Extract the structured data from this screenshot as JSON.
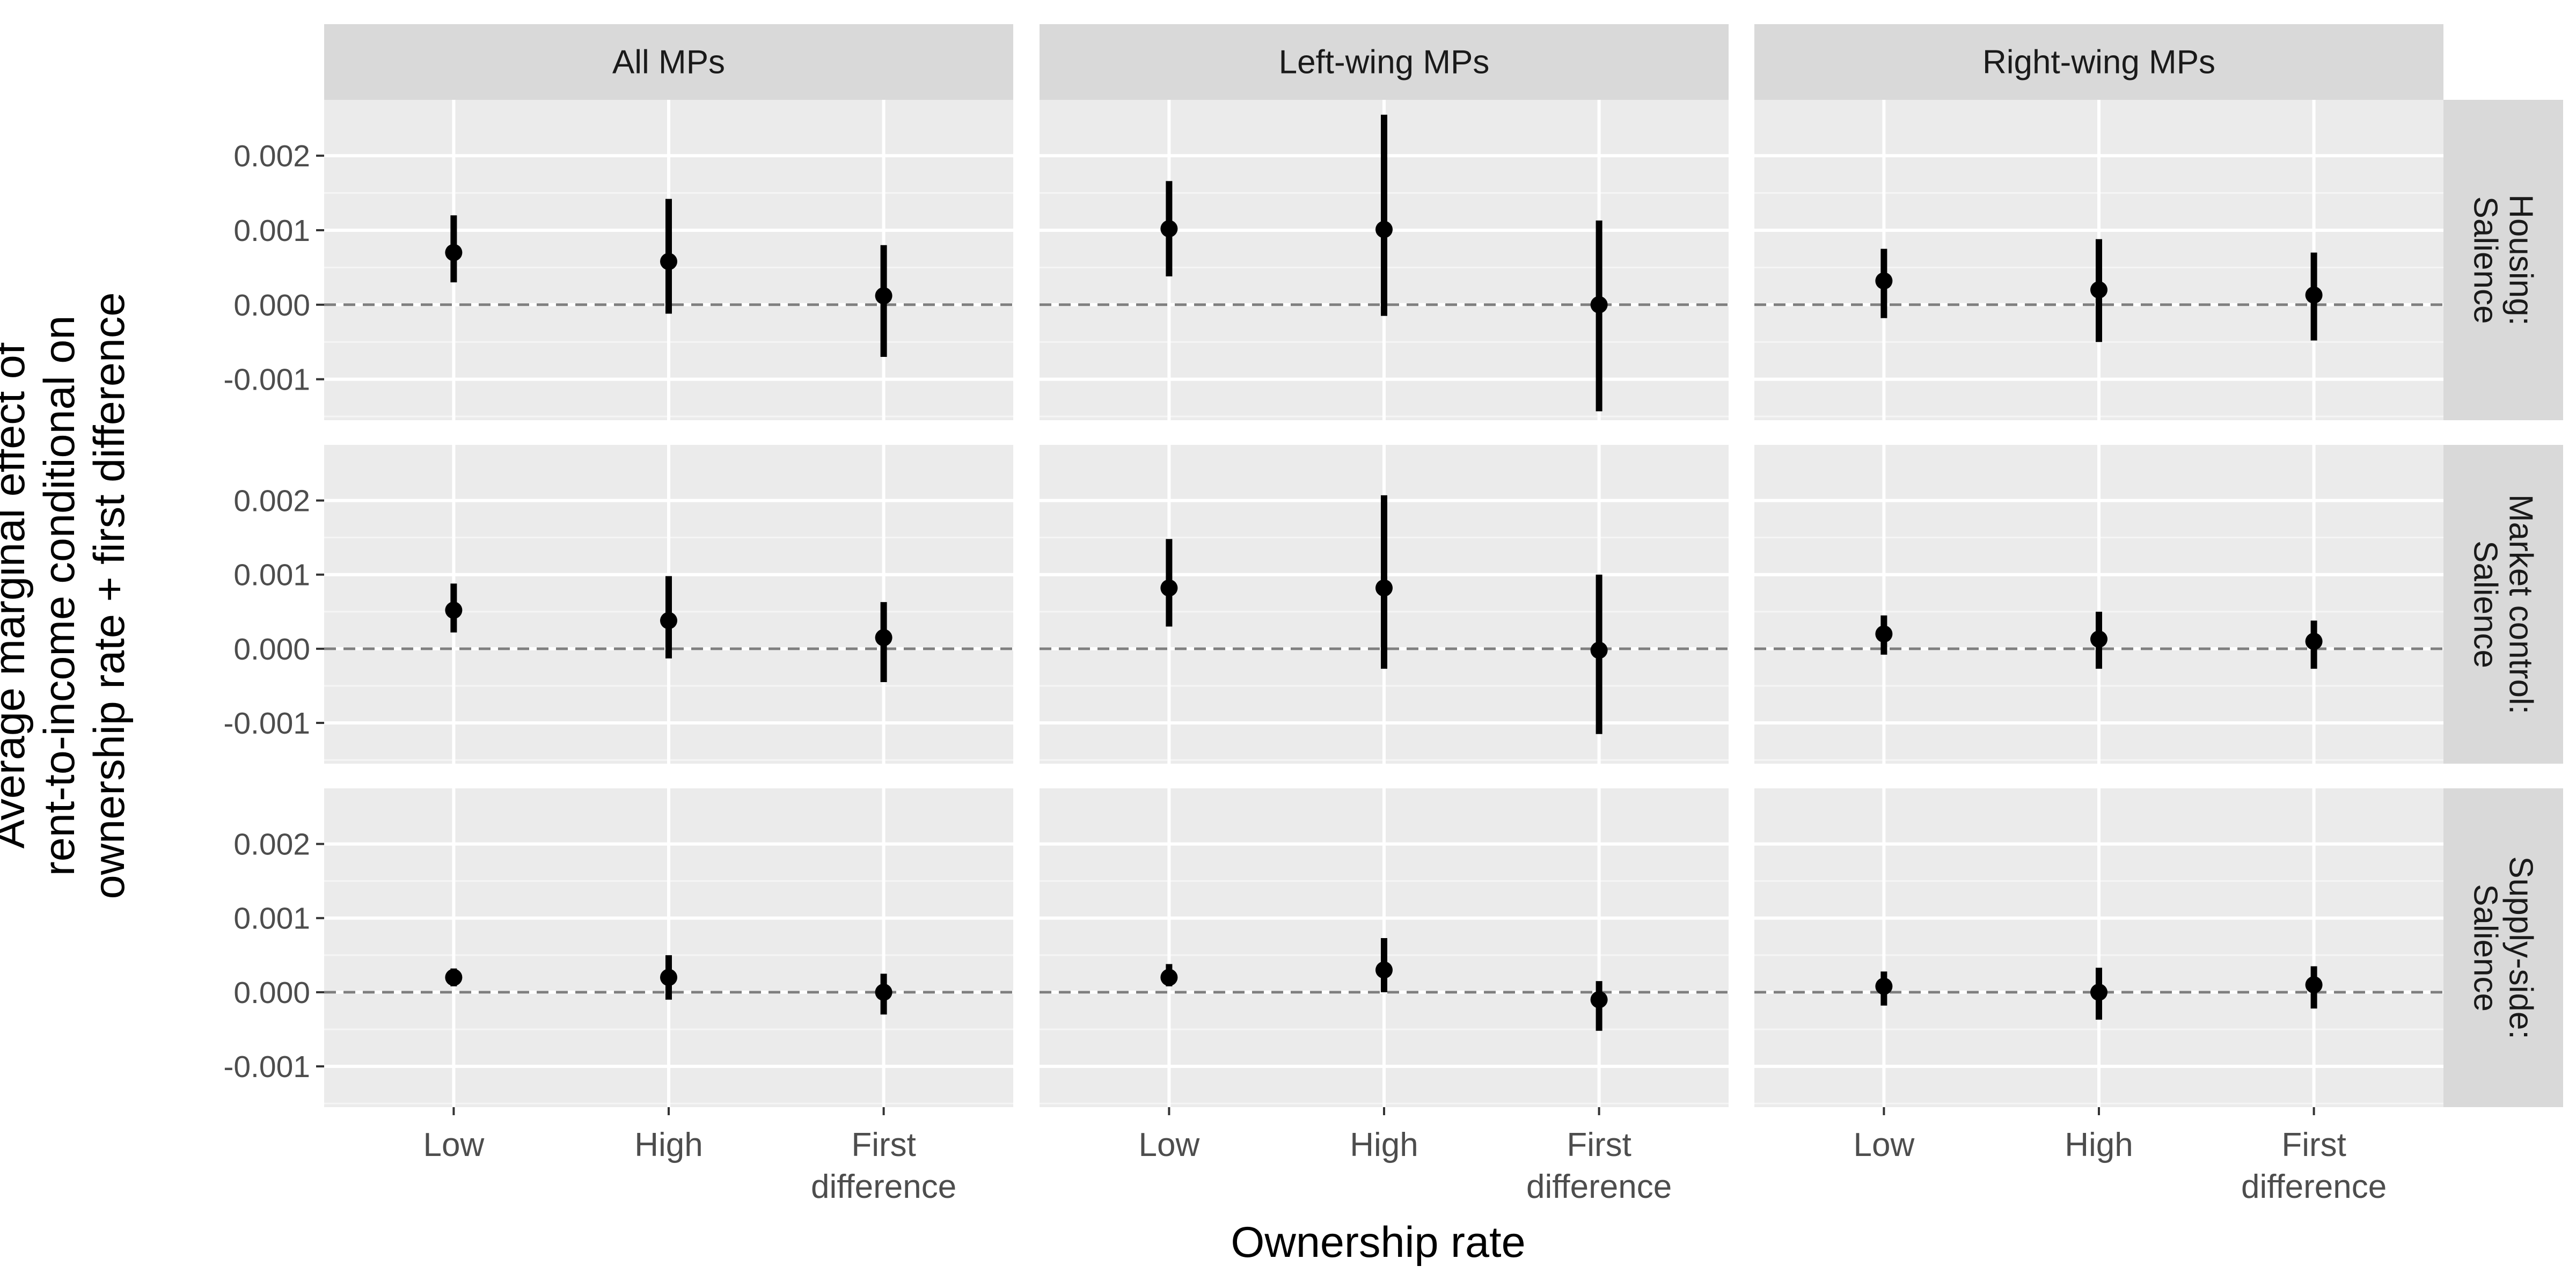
{
  "chart_data": {
    "type": "scatter",
    "subtype": "point-range faceted grid",
    "xlabel": "Ownership rate",
    "ylabel_lines": [
      "Average marginal effect of",
      "rent-to-income conditional on",
      "ownership rate + first difference"
    ],
    "categories": [
      {
        "key": "low",
        "lines": [
          "Low"
        ]
      },
      {
        "key": "high",
        "lines": [
          "High"
        ]
      },
      {
        "key": "first_difference",
        "lines": [
          "First",
          "difference"
        ]
      }
    ],
    "columns": [
      "All MPs",
      "Left-wing MPs",
      "Right-wing MPs"
    ],
    "rows": [
      {
        "key": "housing",
        "lines": [
          "Housing:",
          "Salience"
        ]
      },
      {
        "key": "market_control",
        "lines": [
          "Market control:",
          "Salience"
        ]
      },
      {
        "key": "supply_side",
        "lines": [
          "Supply-side:",
          "Salience"
        ]
      }
    ],
    "yticks": [
      -0.001,
      0.0,
      0.001,
      0.002
    ],
    "ytick_labels": [
      "-0.001",
      "0.000",
      "0.001",
      "0.002"
    ],
    "ylim": [
      -0.00155,
      0.00275
    ],
    "reference_line": {
      "y": 0,
      "style": "dashed"
    },
    "grid": true,
    "legend": "none",
    "panels": [
      {
        "row": "housing",
        "column": "All MPs",
        "points": [
          {
            "category": "low",
            "estimate": 0.0007,
            "lower": 0.0003,
            "upper": 0.0012
          },
          {
            "category": "high",
            "estimate": 0.00058,
            "lower": -0.00012,
            "upper": 0.00142
          },
          {
            "category": "first_difference",
            "estimate": 0.00012,
            "lower": -0.0007,
            "upper": 0.0008
          }
        ]
      },
      {
        "row": "housing",
        "column": "Left-wing MPs",
        "points": [
          {
            "category": "low",
            "estimate": 0.00102,
            "lower": 0.00038,
            "upper": 0.00166
          },
          {
            "category": "high",
            "estimate": 0.00101,
            "lower": -0.00015,
            "upper": 0.00255
          },
          {
            "category": "first_difference",
            "estimate": 0.0,
            "lower": -0.00143,
            "upper": 0.00113
          }
        ]
      },
      {
        "row": "housing",
        "column": "Right-wing MPs",
        "points": [
          {
            "category": "low",
            "estimate": 0.00032,
            "lower": -0.00018,
            "upper": 0.00075
          },
          {
            "category": "high",
            "estimate": 0.0002,
            "lower": -0.0005,
            "upper": 0.00088
          },
          {
            "category": "first_difference",
            "estimate": 0.00013,
            "lower": -0.00048,
            "upper": 0.0007
          }
        ]
      },
      {
        "row": "market_control",
        "column": "All MPs",
        "points": [
          {
            "category": "low",
            "estimate": 0.00052,
            "lower": 0.00022,
            "upper": 0.00088
          },
          {
            "category": "high",
            "estimate": 0.00038,
            "lower": -0.00013,
            "upper": 0.00098
          },
          {
            "category": "first_difference",
            "estimate": 0.00015,
            "lower": -0.00045,
            "upper": 0.00063
          }
        ]
      },
      {
        "row": "market_control",
        "column": "Left-wing MPs",
        "points": [
          {
            "category": "low",
            "estimate": 0.00082,
            "lower": 0.0003,
            "upper": 0.00148
          },
          {
            "category": "high",
            "estimate": 0.00082,
            "lower": -0.00027,
            "upper": 0.00207
          },
          {
            "category": "first_difference",
            "estimate": -2e-05,
            "lower": -0.00115,
            "upper": 0.001
          }
        ]
      },
      {
        "row": "market_control",
        "column": "Right-wing MPs",
        "points": [
          {
            "category": "low",
            "estimate": 0.0002,
            "lower": -8e-05,
            "upper": 0.00045
          },
          {
            "category": "high",
            "estimate": 0.00013,
            "lower": -0.00027,
            "upper": 0.0005
          },
          {
            "category": "first_difference",
            "estimate": 0.0001,
            "lower": -0.00027,
            "upper": 0.00038
          }
        ]
      },
      {
        "row": "supply_side",
        "column": "All MPs",
        "points": [
          {
            "category": "low",
            "estimate": 0.0002,
            "lower": 8e-05,
            "upper": 0.00032
          },
          {
            "category": "high",
            "estimate": 0.0002,
            "lower": -0.0001,
            "upper": 0.0005
          },
          {
            "category": "first_difference",
            "estimate": 0.0,
            "lower": -0.0003,
            "upper": 0.00025
          }
        ]
      },
      {
        "row": "supply_side",
        "column": "Left-wing MPs",
        "points": [
          {
            "category": "low",
            "estimate": 0.0002,
            "lower": 8e-05,
            "upper": 0.00038
          },
          {
            "category": "high",
            "estimate": 0.0003,
            "lower": 0.0,
            "upper": 0.00073
          },
          {
            "category": "first_difference",
            "estimate": -0.0001,
            "lower": -0.00052,
            "upper": 0.00015
          }
        ]
      },
      {
        "row": "supply_side",
        "column": "Right-wing MPs",
        "points": [
          {
            "category": "low",
            "estimate": 8e-05,
            "lower": -0.00018,
            "upper": 0.00028
          },
          {
            "category": "high",
            "estimate": 0.0,
            "lower": -0.00037,
            "upper": 0.00033
          },
          {
            "category": "first_difference",
            "estimate": 0.0001,
            "lower": -0.00022,
            "upper": 0.00035
          }
        ]
      }
    ]
  },
  "colors": {
    "panel_background": "#ebebeb",
    "strip_background": "#d9d9d9",
    "grid_major": "#ffffff",
    "grid_minor": "#f5f5f5",
    "reference_line": "#7f7f7f",
    "points": "#000000",
    "tick_text": "#4d4d4d"
  }
}
